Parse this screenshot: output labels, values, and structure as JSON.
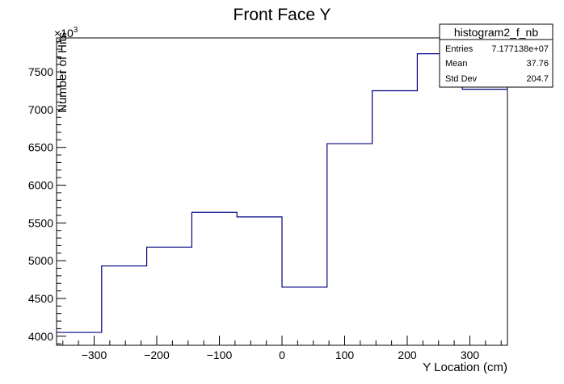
{
  "chart_data": {
    "type": "histogram",
    "title": "Front Face Y",
    "xlabel": "Y Location (cm)",
    "ylabel": "Number of Hits",
    "y_multiplier": "×10",
    "y_multiplier_exp": "3",
    "xlim": [
      -360,
      360
    ],
    "ylim": [
      3880,
      7950
    ],
    "x_ticks": [
      -300,
      -200,
      -100,
      0,
      100,
      200,
      300
    ],
    "x_tick_labels": [
      "−300",
      "−200",
      "−100",
      "0",
      "100",
      "200",
      "300"
    ],
    "y_ticks": [
      4000,
      4500,
      5000,
      5500,
      6000,
      6500,
      7000,
      7500
    ],
    "y_tick_labels": [
      "4000",
      "4500",
      "5000",
      "5500",
      "6000",
      "6500",
      "7000",
      "7500"
    ],
    "bin_edges": [
      -360,
      -288,
      -216,
      -144,
      -72,
      0,
      72,
      144,
      216,
      288,
      360
    ],
    "values": [
      4050,
      4930,
      5180,
      5640,
      5580,
      4650,
      6550,
      7250,
      7740,
      7270
    ],
    "line_color": "#000080",
    "stats": {
      "name": "histogram2_f_nb",
      "rows": [
        {
          "label": "Entries",
          "value": "7.177138e+07"
        },
        {
          "label": "Mean",
          "value": "37.76"
        },
        {
          "label": "Std Dev",
          "value": "204.7"
        }
      ]
    }
  }
}
